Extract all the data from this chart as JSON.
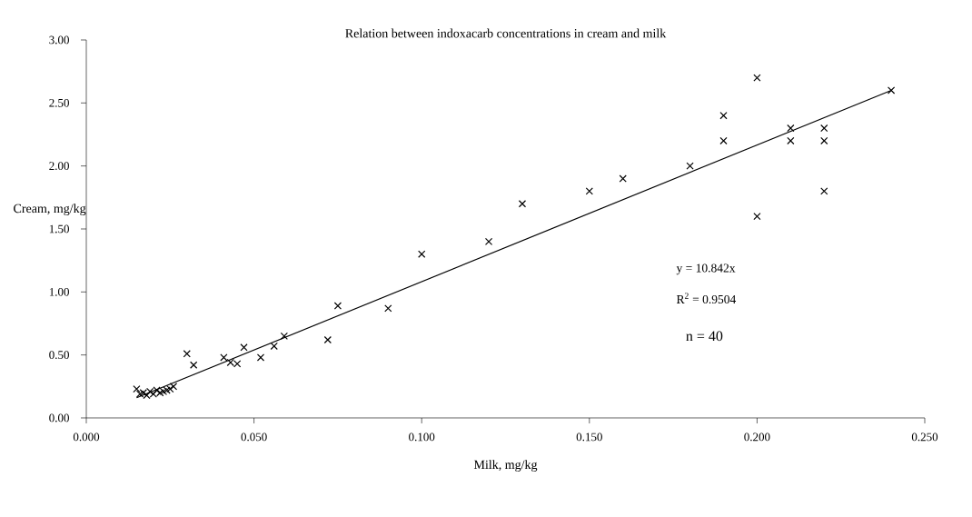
{
  "chart_data": {
    "type": "scatter",
    "title": "Relation between indoxacarb concentrations in cream and milk",
    "xlabel": "Milk, mg/kg",
    "ylabel": "Cream, mg/kg",
    "xlim": [
      0,
      0.25
    ],
    "ylim": [
      0,
      3
    ],
    "xticks": [
      {
        "value": 0,
        "label": "0.000"
      },
      {
        "value": 0.05,
        "label": "0.050"
      },
      {
        "value": 0.1,
        "label": "0.100"
      },
      {
        "value": 0.15,
        "label": "0.150"
      },
      {
        "value": 0.2,
        "label": "0.200"
      },
      {
        "value": 0.25,
        "label": "0.250"
      }
    ],
    "yticks": [
      {
        "value": 0,
        "label": "0.00"
      },
      {
        "value": 0.5,
        "label": "0.50"
      },
      {
        "value": 1,
        "label": "1.00"
      },
      {
        "value": 1.5,
        "label": "1.50"
      },
      {
        "value": 2,
        "label": "2.00"
      },
      {
        "value": 2.5,
        "label": "2.50"
      },
      {
        "value": 3,
        "label": "3.00"
      }
    ],
    "grid": false,
    "marker": "cross",
    "series": [
      {
        "color": "#000000",
        "x": [
          0.015,
          0.016,
          0.017,
          0.018,
          0.019,
          0.02,
          0.021,
          0.022,
          0.023,
          0.024,
          0.025,
          0.026,
          0.03,
          0.032,
          0.041,
          0.043,
          0.045,
          0.047,
          0.052,
          0.056,
          0.059,
          0.072,
          0.075,
          0.09,
          0.1,
          0.12,
          0.13,
          0.15,
          0.16,
          0.18,
          0.19,
          0.19,
          0.2,
          0.2,
          0.21,
          0.21,
          0.22,
          0.22,
          0.22,
          0.24
        ],
        "values": [
          0.23,
          0.19,
          0.2,
          0.18,
          0.21,
          0.19,
          0.22,
          0.2,
          0.21,
          0.22,
          0.23,
          0.25,
          0.51,
          0.42,
          0.48,
          0.44,
          0.43,
          0.56,
          0.48,
          0.57,
          0.65,
          0.62,
          0.89,
          0.87,
          1.3,
          1.4,
          1.7,
          1.8,
          1.9,
          2.0,
          2.4,
          2.2,
          2.7,
          1.6,
          2.3,
          2.2,
          2.3,
          2.2,
          1.8,
          2.6
        ]
      },
      {
        "type": "line",
        "color": "#000000",
        "marker": "none",
        "line_style": "solid",
        "x": [
          0.015,
          0.24
        ],
        "values": [
          0.16,
          2.6
        ]
      }
    ],
    "annotations": [
      "y = 10.842x",
      "R$^{2}$ = 0.9504",
      "n = 40"
    ]
  }
}
